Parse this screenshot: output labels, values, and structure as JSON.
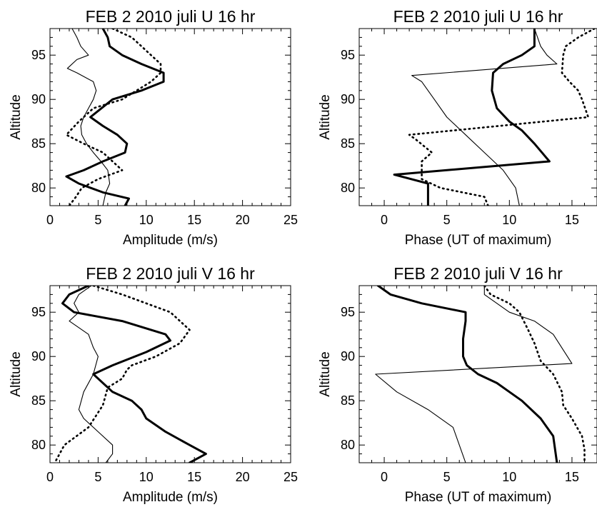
{
  "chart_data": [
    {
      "type": "line",
      "title": "FEB  2 2010 juli  U 16 hr",
      "xlabel": "Amplitude (m/s)",
      "ylabel": "Altitude",
      "xlim": [
        0,
        25
      ],
      "ylim": [
        78,
        98
      ],
      "xticks": [
        0,
        5,
        10,
        15,
        20,
        25
      ],
      "yticks": [
        80,
        85,
        90,
        95
      ],
      "series": [
        {
          "style": "thick",
          "x": [
            5.5,
            6.0,
            6.2,
            7.5,
            9.5,
            11.8,
            11.8,
            9.5,
            6.5,
            4.2,
            5.5,
            7.0,
            8.0,
            7.8,
            5.5,
            3.5,
            1.7,
            3.0,
            5.5,
            8.2,
            7.8
          ],
          "y": [
            98,
            97,
            96,
            95,
            94,
            93,
            92,
            91,
            90,
            88,
            87,
            86,
            85,
            84,
            83,
            82,
            81.3,
            80.5,
            79.5,
            78.8,
            78
          ]
        },
        {
          "style": "thin",
          "x": [
            2.3,
            2.8,
            3.2,
            4.0,
            2.8,
            1.8,
            2.8,
            4.5,
            4.8,
            4.5,
            4.0,
            3.5,
            3.2,
            3.3,
            3.8,
            4.5,
            5.3,
            6.0,
            6.2,
            5.8,
            5.5
          ],
          "y": [
            98,
            97,
            96,
            95,
            94.5,
            93.5,
            93,
            92,
            91,
            90,
            89,
            88,
            87,
            86,
            85,
            84,
            83,
            82,
            80.5,
            79.5,
            78
          ]
        },
        {
          "style": "dotted",
          "x": [
            6.5,
            8.5,
            9.5,
            10.5,
            11.5,
            11.5,
            10.5,
            9.0,
            7.5,
            4.5,
            3.0,
            1.7,
            3.5,
            5.5,
            7.5,
            5.0,
            3.3,
            2.7,
            2.0
          ],
          "y": [
            98,
            97,
            96,
            95,
            94,
            93,
            92,
            91,
            90,
            89,
            87.5,
            86,
            85,
            84,
            82,
            81,
            80,
            79,
            78
          ]
        }
      ]
    },
    {
      "type": "line",
      "title": "FEB  2 2010 juli  U 16 hr",
      "xlabel": "Phase (UT of maximum)",
      "ylabel": "Altitude",
      "xlim": [
        -2,
        17
      ],
      "ylim": [
        78,
        98
      ],
      "xticks": [
        0,
        5,
        10,
        15
      ],
      "yticks": [
        80,
        85,
        90,
        95
      ],
      "series": [
        {
          "style": "thick",
          "x": [
            12.0,
            12.0,
            12.0,
            11.0,
            9.5,
            8.7,
            8.6,
            9.0,
            10.0,
            11.0,
            12.0,
            13.2,
            0.8,
            3.5,
            3.5
          ],
          "y": [
            98,
            97,
            96,
            95,
            94,
            93,
            91,
            89,
            87.5,
            86.5,
            85,
            83,
            81.5,
            80.5,
            78
          ]
        },
        {
          "style": "thin",
          "x": [
            12.0,
            12.5,
            13.0,
            13.8,
            2.2,
            3.0,
            4.0,
            5.0,
            6.5,
            8.0,
            9.5,
            10.5,
            10.8
          ],
          "y": [
            98,
            96,
            95,
            94,
            92.7,
            92,
            90,
            88,
            86,
            84,
            82,
            80,
            78
          ]
        },
        {
          "style": "dotted",
          "x": [
            16.8,
            15.5,
            14.5,
            14.3,
            14.2,
            14.8,
            15.5,
            15.8,
            16.3,
            2.0,
            2.5,
            3.8,
            3.0,
            3.0,
            4.5,
            8.0,
            8.3
          ],
          "y": [
            98,
            97,
            96,
            95,
            93,
            92,
            91,
            90,
            88,
            86,
            85.5,
            84,
            83,
            81,
            80,
            79,
            78
          ]
        }
      ]
    },
    {
      "type": "line",
      "title": "FEB  2 2010 juli  V 16 hr",
      "xlabel": "Amplitude (m/s)",
      "ylabel": "Altitude",
      "xlim": [
        0,
        25
      ],
      "ylim": [
        78,
        98
      ],
      "xticks": [
        0,
        5,
        10,
        15,
        20,
        25
      ],
      "yticks": [
        80,
        85,
        90,
        95
      ],
      "series": [
        {
          "style": "thick",
          "x": [
            4.0,
            2.0,
            1.3,
            2.5,
            7.5,
            12.0,
            12.5,
            10.0,
            6.5,
            4.5,
            6.5,
            8.5,
            9.5,
            10.0,
            12.0,
            14.5,
            16.2,
            14.5
          ],
          "y": [
            98,
            97,
            96,
            95,
            94,
            92.5,
            91.8,
            90.5,
            89,
            88,
            86,
            85,
            84,
            83,
            81.5,
            80,
            79,
            78
          ]
        },
        {
          "style": "thin",
          "x": [
            4.3,
            3.0,
            2.5,
            3.0,
            2.0,
            4.0,
            4.5,
            5.0,
            4.5,
            3.5,
            3.0,
            3.5,
            5.0,
            6.5,
            6.5,
            5.8
          ],
          "y": [
            98,
            97,
            96,
            95,
            94,
            92.5,
            91,
            90,
            88,
            86,
            84,
            83,
            81.5,
            80,
            79,
            78
          ]
        },
        {
          "style": "dotted",
          "x": [
            4.5,
            7.5,
            10.0,
            12.5,
            14.5,
            13.5,
            11.0,
            8.5,
            8.0,
            7.5,
            6.0,
            5.5,
            4.0,
            1.5,
            0.5
          ],
          "y": [
            98,
            97,
            96,
            95,
            93,
            91.5,
            90,
            89,
            88.5,
            87.5,
            86.5,
            84.5,
            82,
            80,
            78
          ]
        }
      ]
    },
    {
      "type": "line",
      "title": "FEB  2 2010 juli  V 16 hr",
      "xlabel": "Phase (UT of maximum)",
      "ylabel": "Altitude",
      "xlim": [
        -2,
        17
      ],
      "ylim": [
        78,
        98
      ],
      "xticks": [
        0,
        5,
        10,
        15
      ],
      "yticks": [
        80,
        85,
        90,
        95
      ],
      "series": [
        {
          "style": "thick",
          "x": [
            -0.5,
            0.5,
            3.0,
            6.5,
            6.5,
            6.3,
            6.3,
            6.6,
            7.5,
            9.0,
            10.0,
            11.0,
            12.5,
            13.5,
            13.8
          ],
          "y": [
            98,
            97,
            96,
            95,
            94,
            92,
            90,
            89,
            88,
            87,
            86,
            85,
            83,
            81,
            78
          ]
        },
        {
          "style": "thin",
          "x": [
            8.0,
            8.0,
            10.0,
            12.0,
            13.5,
            15.0,
            -0.7,
            1.0,
            3.5,
            5.5,
            6.5
          ],
          "y": [
            98,
            97,
            95,
            94,
            92.5,
            89.2,
            88,
            86,
            84,
            82,
            78
          ]
        },
        {
          "style": "dotted",
          "x": [
            8.0,
            8.5,
            10.0,
            10.8,
            11.5,
            12.0,
            12.5,
            13.5,
            14.2,
            14.3,
            15.0,
            15.8,
            16.0,
            16.0
          ],
          "y": [
            98,
            97,
            96,
            95,
            93,
            91.5,
            89.5,
            88,
            86,
            84.5,
            83,
            81,
            79.5,
            78
          ]
        }
      ]
    }
  ]
}
